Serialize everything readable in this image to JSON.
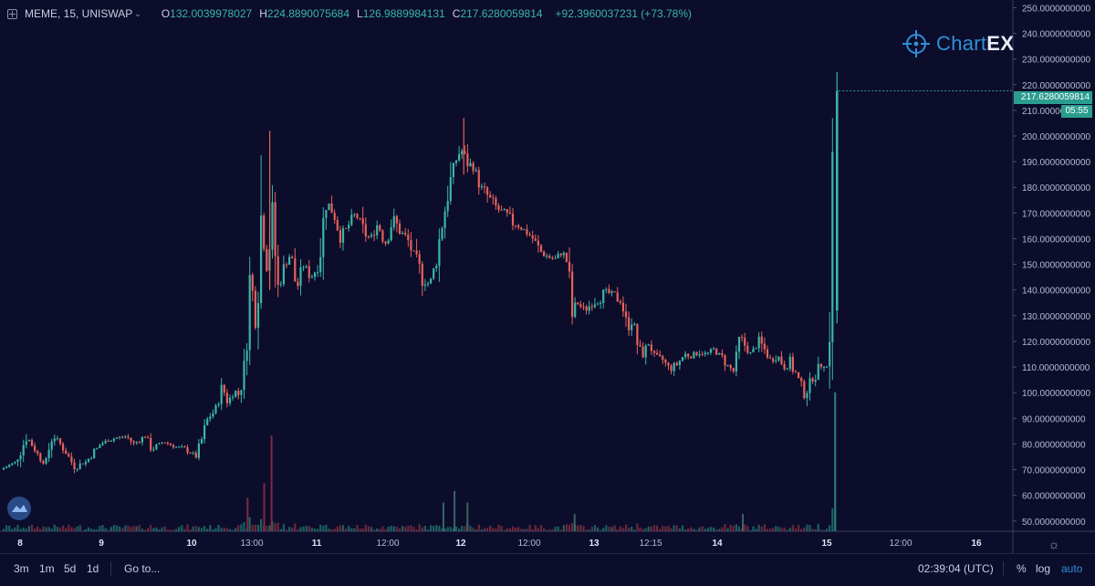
{
  "header": {
    "symbol": "MEME, 15, UNISWAP",
    "open_label": "O",
    "open_value": "132.0039978027",
    "high_label": "H",
    "high_value": "224.8890075684",
    "low_label": "L",
    "low_value": "126.9889984131",
    "close_label": "C",
    "close_value": "217.6280059814",
    "change": "+92.3960037231 (+73.78%)"
  },
  "logo": {
    "text_a": "Chart",
    "text_b": "EX"
  },
  "last_price_tag": "217.6280059814",
  "countdown_tag": "05:55",
  "bottom_bar": {
    "ranges": [
      "3m",
      "1m",
      "5d",
      "1d"
    ],
    "goto": "Go to...",
    "clock": "02:39:04 (UTC)",
    "percent": "%",
    "log": "log",
    "auto": "auto"
  },
  "colors": {
    "background": "#0c0d2b",
    "up": "#3ab5a6",
    "down": "#e8615a",
    "accent": "#2f8fd8"
  },
  "chart_data": {
    "type": "candlestick",
    "symbol": "MEME",
    "interval": "15",
    "exchange": "UNISWAP",
    "y_tick_labels": [
      "50.0000000000",
      "60.0000000000",
      "70.0000000000",
      "80.0000000000",
      "90.0000000000",
      "100.0000000000",
      "110.0000000000",
      "120.0000000000",
      "130.0000000000",
      "140.0000000000",
      "150.0000000000",
      "160.0000000000",
      "170.0000000000",
      "180.0000000000",
      "190.0000000000",
      "200.0000000000",
      "210.0000000000",
      "220.0000000000",
      "230.0000000000",
      "240.0000000000",
      "250.0000000000"
    ],
    "y_range": [
      46,
      253
    ],
    "x_ticks": [
      "8",
      "9",
      "10",
      "13:00",
      "11",
      "12:00",
      "12",
      "12:00",
      "13",
      "12:15",
      "14",
      "15",
      "12:00",
      "16"
    ],
    "x_tick_emphasis": [
      true,
      true,
      true,
      false,
      true,
      false,
      true,
      false,
      true,
      false,
      true,
      true,
      false,
      true
    ],
    "close_path": [
      {
        "x": 0.0,
        "y": 70
      },
      {
        "x": 0.4,
        "y": 73
      },
      {
        "x": 0.7,
        "y": 83
      },
      {
        "x": 1.0,
        "y": 76
      },
      {
        "x": 1.2,
        "y": 72
      },
      {
        "x": 1.4,
        "y": 84
      },
      {
        "x": 1.7,
        "y": 78
      },
      {
        "x": 2.0,
        "y": 71
      },
      {
        "x": 2.3,
        "y": 73
      },
      {
        "x": 2.7,
        "y": 80
      },
      {
        "x": 3.0,
        "y": 82
      },
      {
        "x": 3.4,
        "y": 83
      },
      {
        "x": 3.6,
        "y": 80
      },
      {
        "x": 3.9,
        "y": 83
      },
      {
        "x": 4.1,
        "y": 78
      },
      {
        "x": 4.4,
        "y": 81
      },
      {
        "x": 4.7,
        "y": 79
      },
      {
        "x": 5.0,
        "y": 78
      },
      {
        "x": 5.3,
        "y": 75
      },
      {
        "x": 5.6,
        "y": 90
      },
      {
        "x": 5.8,
        "y": 93
      },
      {
        "x": 6.0,
        "y": 102
      },
      {
        "x": 6.15,
        "y": 96
      },
      {
        "x": 6.3,
        "y": 101
      },
      {
        "x": 6.45,
        "y": 99
      },
      {
        "x": 6.6,
        "y": 110
      },
      {
        "x": 6.75,
        "y": 145
      },
      {
        "x": 6.9,
        "y": 130
      },
      {
        "x": 7.05,
        "y": 170
      },
      {
        "x": 7.2,
        "y": 150
      },
      {
        "x": 7.35,
        "y": 168
      },
      {
        "x": 7.5,
        "y": 140
      },
      {
        "x": 7.7,
        "y": 150
      },
      {
        "x": 7.85,
        "y": 155
      },
      {
        "x": 8.0,
        "y": 140
      },
      {
        "x": 8.2,
        "y": 150
      },
      {
        "x": 8.4,
        "y": 145
      },
      {
        "x": 8.6,
        "y": 150
      },
      {
        "x": 8.8,
        "y": 175
      },
      {
        "x": 9.0,
        "y": 170
      },
      {
        "x": 9.2,
        "y": 160
      },
      {
        "x": 9.4,
        "y": 165
      },
      {
        "x": 9.6,
        "y": 170
      },
      {
        "x": 9.8,
        "y": 163
      },
      {
        "x": 10.0,
        "y": 160
      },
      {
        "x": 10.2,
        "y": 166
      },
      {
        "x": 10.4,
        "y": 158
      },
      {
        "x": 10.6,
        "y": 168
      },
      {
        "x": 10.8,
        "y": 163
      },
      {
        "x": 11.0,
        "y": 160
      },
      {
        "x": 11.2,
        "y": 152
      },
      {
        "x": 11.4,
        "y": 145
      },
      {
        "x": 11.6,
        "y": 142
      },
      {
        "x": 11.8,
        "y": 152
      },
      {
        "x": 11.9,
        "y": 163
      },
      {
        "x": 12.1,
        "y": 178
      },
      {
        "x": 12.3,
        "y": 190
      },
      {
        "x": 12.45,
        "y": 195
      },
      {
        "x": 12.6,
        "y": 190
      },
      {
        "x": 12.8,
        "y": 188
      },
      {
        "x": 13.0,
        "y": 180
      },
      {
        "x": 13.2,
        "y": 176
      },
      {
        "x": 13.4,
        "y": 172
      },
      {
        "x": 13.6,
        "y": 170
      },
      {
        "x": 13.8,
        "y": 167
      },
      {
        "x": 14.0,
        "y": 165
      },
      {
        "x": 14.2,
        "y": 163
      },
      {
        "x": 14.4,
        "y": 160
      },
      {
        "x": 14.6,
        "y": 155
      },
      {
        "x": 14.8,
        "y": 153
      },
      {
        "x": 15.0,
        "y": 152
      },
      {
        "x": 15.2,
        "y": 155
      },
      {
        "x": 15.35,
        "y": 150
      },
      {
        "x": 15.45,
        "y": 130
      },
      {
        "x": 15.6,
        "y": 135
      },
      {
        "x": 15.8,
        "y": 132
      },
      {
        "x": 16.0,
        "y": 135
      },
      {
        "x": 16.2,
        "y": 137
      },
      {
        "x": 16.4,
        "y": 139
      },
      {
        "x": 16.6,
        "y": 138
      },
      {
        "x": 16.8,
        "y": 135
      },
      {
        "x": 16.95,
        "y": 125
      },
      {
        "x": 17.1,
        "y": 130
      },
      {
        "x": 17.25,
        "y": 117
      },
      {
        "x": 17.4,
        "y": 115
      },
      {
        "x": 17.55,
        "y": 120
      },
      {
        "x": 17.7,
        "y": 112
      },
      {
        "x": 17.9,
        "y": 113
      },
      {
        "x": 18.1,
        "y": 109
      },
      {
        "x": 18.3,
        "y": 111
      },
      {
        "x": 18.5,
        "y": 115
      },
      {
        "x": 18.7,
        "y": 114
      },
      {
        "x": 18.9,
        "y": 116
      },
      {
        "x": 19.1,
        "y": 115
      },
      {
        "x": 19.3,
        "y": 117
      },
      {
        "x": 19.5,
        "y": 114
      },
      {
        "x": 19.7,
        "y": 110
      },
      {
        "x": 19.85,
        "y": 108
      },
      {
        "x": 20.0,
        "y": 122
      },
      {
        "x": 20.15,
        "y": 118
      },
      {
        "x": 20.3,
        "y": 115
      },
      {
        "x": 20.5,
        "y": 120
      },
      {
        "x": 20.7,
        "y": 116
      },
      {
        "x": 20.85,
        "y": 112
      },
      {
        "x": 21.0,
        "y": 115
      },
      {
        "x": 21.2,
        "y": 110
      },
      {
        "x": 21.35,
        "y": 112
      },
      {
        "x": 21.5,
        "y": 108
      },
      {
        "x": 21.7,
        "y": 100
      },
      {
        "x": 21.85,
        "y": 102
      },
      {
        "x": 22.0,
        "y": 106
      },
      {
        "x": 22.1,
        "y": 108
      },
      {
        "x": 22.25,
        "y": 112
      },
      {
        "x": 22.35,
        "y": 110
      },
      {
        "x": 22.45,
        "y": 131
      },
      {
        "x": 22.55,
        "y": 217.6
      }
    ],
    "spikes": [
      {
        "x": 7.2,
        "high": 202,
        "low": 140
      },
      {
        "x": 12.45,
        "high": 207,
        "low": 185
      },
      {
        "x": 22.55,
        "high": 224.9,
        "low": 126.99
      }
    ],
    "volume_spikes": [
      {
        "x": 7.25,
        "v": 1.0
      },
      {
        "x": 7.05,
        "v": 0.5
      },
      {
        "x": 6.6,
        "v": 0.35
      },
      {
        "x": 11.9,
        "v": 0.3
      },
      {
        "x": 12.2,
        "v": 0.42
      },
      {
        "x": 12.55,
        "v": 0.3
      },
      {
        "x": 15.45,
        "v": 0.18
      },
      {
        "x": 20.0,
        "v": 0.18
      },
      {
        "x": 22.5,
        "v": 1.45
      }
    ],
    "last_price": "217.6280059814"
  }
}
